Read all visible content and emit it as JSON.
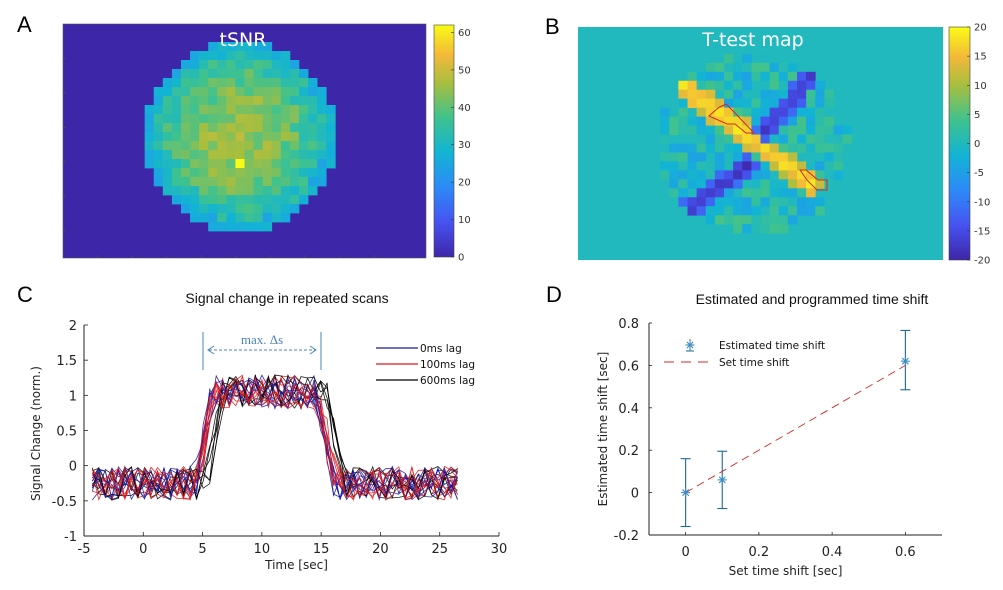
{
  "panels": {
    "A": {
      "letter": "A"
    },
    "B": {
      "letter": "B"
    },
    "C": {
      "letter": "C"
    },
    "D": {
      "letter": "D"
    }
  },
  "chart_data": [
    {
      "id": "A",
      "type": "heatmap",
      "title": "tSNR",
      "colorbar": {
        "min": 0,
        "max": 62,
        "ticks": [
          "0",
          "10",
          "20",
          "30",
          "40",
          "50",
          "60"
        ],
        "tick_values": [
          0,
          10,
          20,
          30,
          40,
          50,
          60
        ],
        "colormap": "parula"
      },
      "background_value": 0,
      "description": "Circular phantom tSNR map; values ~25-55 inside disk, peak ~62 near center, 0 outside",
      "grid": {
        "cols": 40,
        "rows": 26
      },
      "disk": {
        "center_col": 19.5,
        "center_row": 12.5,
        "radius_cols": 10.5,
        "inner_value": 45,
        "edge_value": 27,
        "peak_value": 62
      }
    },
    {
      "id": "B",
      "type": "heatmap",
      "title": "T-test map",
      "colorbar": {
        "min": -20,
        "max": 20,
        "ticks": [
          "20",
          "15",
          "10",
          "5",
          "0",
          "-5",
          "-10",
          "-15",
          "-20"
        ],
        "tick_values": [
          20,
          15,
          10,
          5,
          0,
          -5,
          -10,
          -15,
          -20
        ],
        "colormap": "parula"
      },
      "background_value": 0,
      "description": "T-statistic map with positive diagonal band (top-left to bottom-right) and negative diagonal band (top-right to bottom-left); two ROIs outlined in red on the positive band",
      "positive_band_peak": 18,
      "negative_band_peak": -18,
      "roi_outline_color": "#d42a1e"
    },
    {
      "id": "C",
      "type": "line",
      "title": "Signal change in repeated scans",
      "xlabel": "Time [sec]",
      "ylabel": "Signal Change (norm.)",
      "xlim": [
        -5,
        30
      ],
      "ylim": [
        -1,
        2
      ],
      "xticks": [
        "-5",
        "0",
        "5",
        "10",
        "15",
        "20",
        "25",
        "30"
      ],
      "xtick_values": [
        -5,
        0,
        5,
        10,
        15,
        20,
        25,
        30
      ],
      "yticks": [
        "-1",
        "-0.5",
        "0",
        "0.5",
        "1",
        "1.5",
        "2"
      ],
      "ytick_values": [
        -1,
        -0.5,
        0,
        0.5,
        1,
        1.5,
        2
      ],
      "legend": {
        "placement": "top-right",
        "entries": [
          {
            "label": "0ms lag",
            "color": "#1a1aa8"
          },
          {
            "label": "100ms lag",
            "color": "#e01818"
          },
          {
            "label": "600ms lag",
            "color": "#000000"
          }
        ]
      },
      "annotation": {
        "text": "max. Δs",
        "x_start": 5,
        "x_end": 15,
        "color": "#4a86b8"
      },
      "series_model": {
        "time_start": -4.3,
        "time_end": 27,
        "sample_step": 0.55,
        "baseline": -0.25,
        "plateau": 1.05,
        "noise_amplitude": 0.2,
        "on_time": 4.4,
        "off_time": 14.6,
        "ramp_duration": 1.4,
        "groups": [
          {
            "name": "0ms lag",
            "lag_sec": 0.0,
            "color": "#1a1aa8",
            "runs": 8
          },
          {
            "name": "100ms lag",
            "lag_sec": 0.1,
            "color": "#e01818",
            "runs": 8
          },
          {
            "name": "600ms lag",
            "lag_sec": 0.6,
            "color": "#000000",
            "runs": 6
          }
        ]
      }
    },
    {
      "id": "D",
      "type": "scatter",
      "title": "Estimated and programmed time shift",
      "xlabel": "Set time shift  [sec]",
      "ylabel": "Estimated time shift [sec]",
      "xlim": [
        -0.1,
        0.7
      ],
      "ylim": [
        -0.2,
        0.8
      ],
      "xticks": [
        "0",
        "0.2",
        "0.4",
        "0.6"
      ],
      "xtick_values": [
        0,
        0.2,
        0.4,
        0.6
      ],
      "yticks": [
        "-0.2",
        "0",
        "0.2",
        "0.4",
        "0.6",
        "0.8"
      ],
      "ytick_values": [
        -0.2,
        0,
        0.2,
        0.4,
        0.6,
        0.8
      ],
      "legend": {
        "placement": "top-left",
        "entries": [
          {
            "label": "Estimated time shift",
            "color": "#1f77b4",
            "marker": "asterisk"
          },
          {
            "label": "Set time shift",
            "color": "#d62728",
            "style": "dashed"
          }
        ]
      },
      "estimated": [
        {
          "x": 0.0,
          "y": 0.0,
          "err_low": -0.16,
          "err_high": 0.16
        },
        {
          "x": 0.1,
          "y": 0.06,
          "err_low": -0.075,
          "err_high": 0.195
        },
        {
          "x": 0.6,
          "y": 0.62,
          "err_low": 0.485,
          "err_high": 0.765
        }
      ],
      "set_line": [
        {
          "x": 0.0,
          "y": 0.0
        },
        {
          "x": 0.6,
          "y": 0.6
        }
      ]
    }
  ]
}
